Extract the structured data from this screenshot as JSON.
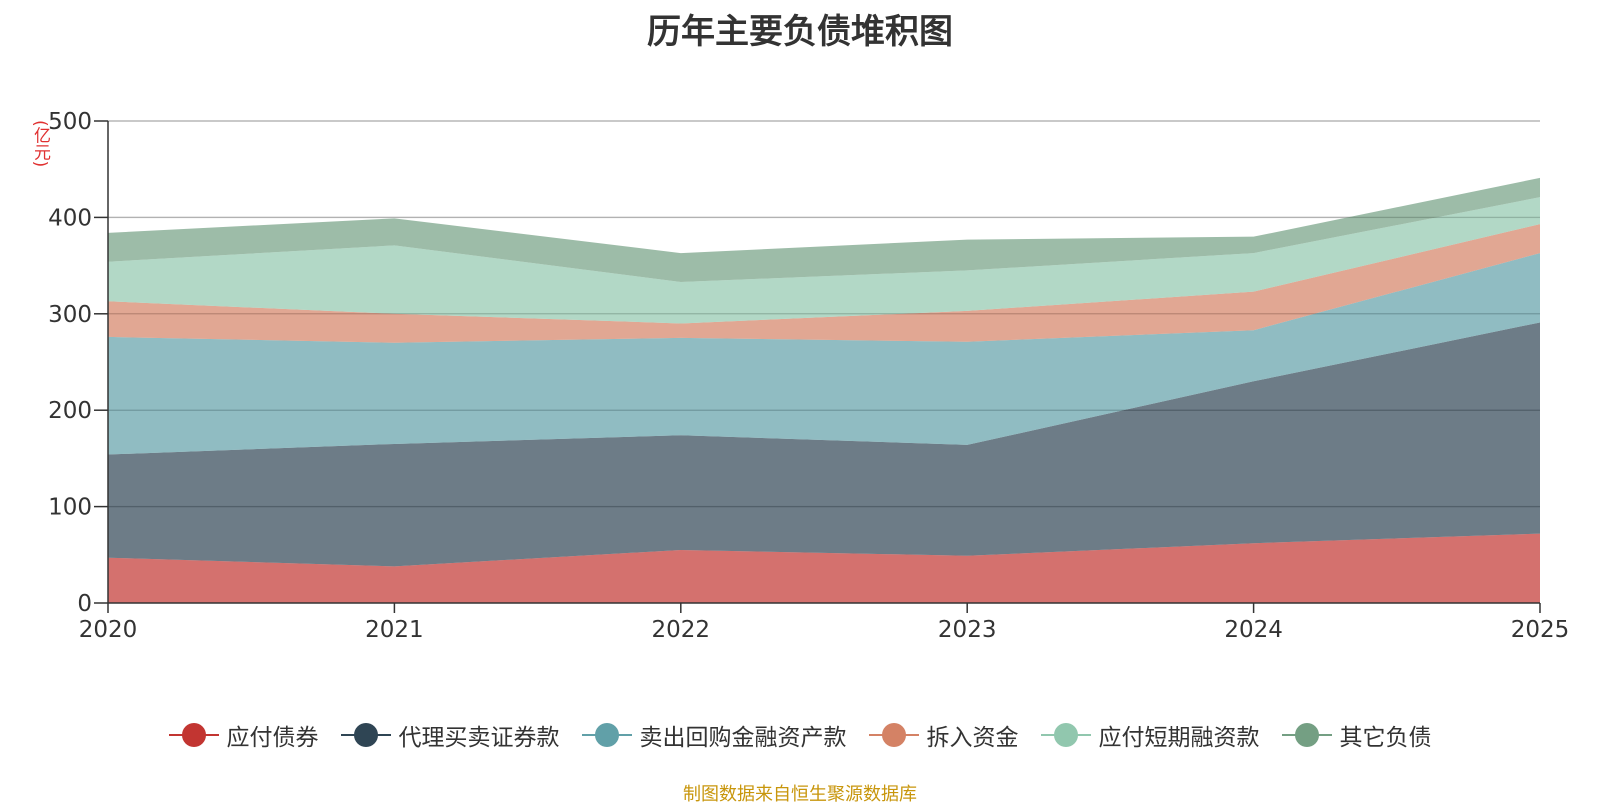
{
  "chart_data": {
    "type": "area",
    "stacked": true,
    "title": "历年主要负债堆积图",
    "ylabel": "(亿元)",
    "xlabel": "",
    "x": [
      "2020",
      "2021",
      "2022",
      "2023",
      "2024",
      "2025"
    ],
    "ylim": [
      0,
      500
    ],
    "yticks": [
      0,
      100,
      200,
      300,
      400,
      500
    ],
    "grid": true,
    "legend_position": "bottom",
    "series": [
      {
        "name": "应付债券",
        "color": "#c23531",
        "values": [
          47,
          38,
          55,
          49,
          62,
          72
        ]
      },
      {
        "name": "代理买卖证券款",
        "color": "#2f4554",
        "values": [
          107,
          127,
          119,
          115,
          168,
          219
        ]
      },
      {
        "name": "卖出回购金融资产款",
        "color": "#61a0a8",
        "values": [
          122,
          105,
          101,
          107,
          53,
          72
        ]
      },
      {
        "name": "拆入资金",
        "color": "#d48265",
        "values": [
          37,
          30,
          15,
          32,
          40,
          30
        ]
      },
      {
        "name": "应付短期融资款",
        "color": "#91c7ae",
        "values": [
          41,
          71,
          43,
          42,
          40,
          28
        ]
      },
      {
        "name": "其它负债",
        "color": "#749f83",
        "values": [
          30,
          28,
          30,
          32,
          17,
          20
        ]
      }
    ]
  },
  "footer": {
    "source": "制图数据来自恒生聚源数据库"
  }
}
